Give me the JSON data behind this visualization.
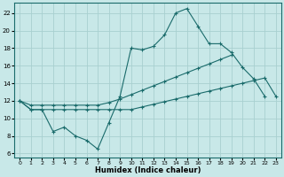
{
  "xlabel": "Humidex (Indice chaleur)",
  "xlim": [
    -0.5,
    23.5
  ],
  "ylim": [
    5.5,
    23.2
  ],
  "xticks": [
    0,
    1,
    2,
    3,
    4,
    5,
    6,
    7,
    8,
    9,
    10,
    11,
    12,
    13,
    14,
    15,
    16,
    17,
    18,
    19,
    20,
    21,
    22,
    23
  ],
  "yticks": [
    6,
    8,
    10,
    12,
    14,
    16,
    18,
    20,
    22
  ],
  "bg_color": "#c8e8e8",
  "line_color": "#1a6b6b",
  "grid_color": "#a8d0d0",
  "line1_x": [
    0,
    1,
    2,
    3,
    4,
    5,
    6,
    7,
    8,
    9,
    10,
    11,
    12,
    13,
    14,
    15,
    16,
    17,
    18,
    19,
    20,
    21,
    22
  ],
  "line1_y": [
    12,
    11,
    11,
    8.5,
    9,
    8,
    7.5,
    6.5,
    9.5,
    12.5,
    18,
    17.8,
    18.2,
    19.5,
    22,
    22.5,
    20.5,
    18.5,
    18.5,
    17.5,
    15.8,
    14.5,
    12.5
  ],
  "line2_x": [
    0,
    1,
    2,
    3,
    4,
    5,
    6,
    7,
    8,
    9,
    10,
    11,
    12,
    13,
    14,
    15,
    16,
    17,
    18,
    19
  ],
  "line2_y": [
    12,
    11.5,
    11.5,
    11.5,
    11.5,
    11.5,
    11.5,
    11.5,
    11.8,
    12.2,
    12.7,
    13.2,
    13.7,
    14.2,
    14.7,
    15.2,
    15.7,
    16.2,
    16.7,
    17.2
  ],
  "line3_x": [
    0,
    1,
    2,
    3,
    4,
    5,
    6,
    7,
    8,
    9,
    10,
    11,
    12,
    13,
    14,
    15,
    16,
    17,
    18,
    19,
    20,
    21,
    22,
    23
  ],
  "line3_y": [
    12,
    11,
    11,
    11,
    11,
    11,
    11,
    11,
    11,
    11,
    11,
    11.3,
    11.6,
    11.9,
    12.2,
    12.5,
    12.8,
    13.1,
    13.4,
    13.7,
    14.0,
    14.3,
    14.6,
    12.5
  ]
}
